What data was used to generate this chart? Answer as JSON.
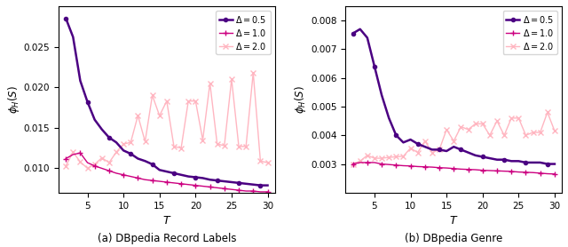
{
  "left": {
    "T": [
      2,
      3,
      4,
      5,
      6,
      7,
      8,
      9,
      10,
      11,
      12,
      13,
      14,
      15,
      16,
      17,
      18,
      19,
      20,
      21,
      22,
      23,
      24,
      25,
      26,
      27,
      28,
      29,
      30
    ],
    "delta05": [
      0.0285,
      0.0262,
      0.0208,
      0.0182,
      0.016,
      0.0148,
      0.0138,
      0.0132,
      0.0122,
      0.0118,
      0.0112,
      0.0109,
      0.0105,
      0.0098,
      0.0096,
      0.0094,
      0.0092,
      0.009,
      0.0089,
      0.0088,
      0.0086,
      0.0085,
      0.0084,
      0.0083,
      0.0082,
      0.0081,
      0.008,
      0.0079,
      0.0079
    ],
    "delta10": [
      0.0112,
      0.0117,
      0.0119,
      0.0107,
      0.0103,
      0.01,
      0.0097,
      0.0094,
      0.0092,
      0.009,
      0.0088,
      0.0086,
      0.0085,
      0.0084,
      0.0083,
      0.0082,
      0.0081,
      0.008,
      0.0079,
      0.0078,
      0.0077,
      0.0076,
      0.0075,
      0.0074,
      0.0073,
      0.0072,
      0.0072,
      0.0071,
      0.0071
    ],
    "delta20": [
      0.0103,
      0.012,
      0.0108,
      0.01,
      0.0105,
      0.0113,
      0.0107,
      0.012,
      0.013,
      0.0132,
      0.0165,
      0.0133,
      0.019,
      0.0165,
      0.0183,
      0.0127,
      0.0125,
      0.0183,
      0.0183,
      0.0135,
      0.0205,
      0.013,
      0.0128,
      0.021,
      0.0127,
      0.0127,
      0.0218,
      0.0109,
      0.0107
    ],
    "ylabel": "$\\phi_H(S)$",
    "caption": "(a) DBpedia Record Labels",
    "ylim": [
      0.007,
      0.03
    ],
    "yticks": [
      0.01,
      0.015,
      0.02,
      0.025
    ]
  },
  "right": {
    "T": [
      2,
      3,
      4,
      5,
      6,
      7,
      8,
      9,
      10,
      11,
      12,
      13,
      14,
      15,
      16,
      17,
      18,
      19,
      20,
      21,
      22,
      23,
      24,
      25,
      26,
      27,
      28,
      29,
      30
    ],
    "delta05": [
      0.00755,
      0.0077,
      0.0074,
      0.0064,
      0.0054,
      0.0046,
      0.004,
      0.00375,
      0.00385,
      0.0037,
      0.0036,
      0.0035,
      0.0035,
      0.00345,
      0.0036,
      0.0035,
      0.0034,
      0.0033,
      0.00325,
      0.0032,
      0.00315,
      0.00315,
      0.0031,
      0.0031,
      0.00305,
      0.00305,
      0.00305,
      0.003,
      0.003
    ],
    "delta10": [
      0.003,
      0.00305,
      0.00305,
      0.00305,
      0.003,
      0.00298,
      0.00296,
      0.00294,
      0.00293,
      0.00291,
      0.0029,
      0.00289,
      0.00287,
      0.00286,
      0.00284,
      0.00282,
      0.00281,
      0.0028,
      0.00278,
      0.00277,
      0.00276,
      0.00275,
      0.00274,
      0.00272,
      0.00271,
      0.0027,
      0.00268,
      0.00266,
      0.00265
    ],
    "delta20": [
      0.003,
      0.0031,
      0.0033,
      0.0032,
      0.0032,
      0.00323,
      0.00325,
      0.00327,
      0.00355,
      0.0034,
      0.0038,
      0.0034,
      0.0035,
      0.0042,
      0.0038,
      0.0043,
      0.0042,
      0.0044,
      0.0044,
      0.004,
      0.0045,
      0.004,
      0.0046,
      0.0046,
      0.004,
      0.0041,
      0.0041,
      0.0048,
      0.00415
    ],
    "ylabel": "$\\phi_H(S)$",
    "caption": "(b) DBpedia Genre",
    "ylim": [
      0.002,
      0.0085
    ],
    "yticks": [
      0.003,
      0.004,
      0.005,
      0.006,
      0.007,
      0.008
    ]
  },
  "colors": {
    "delta05": "#4B0082",
    "delta10": "#CC0080",
    "delta20": "#FFB6C1"
  },
  "legend_labels": [
    "$\\Delta = 0.5$",
    "$\\Delta = 1.0$",
    "$\\Delta = 2.0$"
  ],
  "markers": {
    "delta05": "o",
    "delta10": "+",
    "delta20": "x"
  },
  "markevery": 3,
  "figsize": [
    6.4,
    2.78
  ],
  "dpi": 100
}
